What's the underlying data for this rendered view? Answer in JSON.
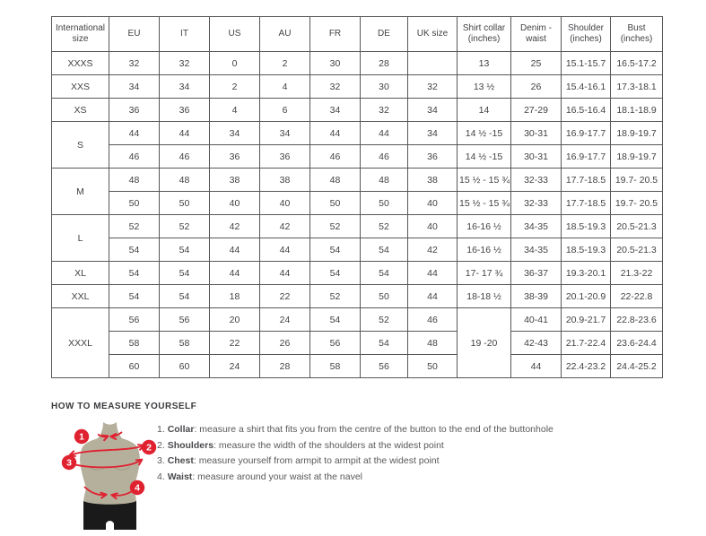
{
  "colors": {
    "accent_red": "#e02130",
    "torso": "#b5b09c",
    "torso_shade": "#a19c86",
    "shorts": "#1a1a1a",
    "table_border": "#57575a",
    "text": "#414245"
  },
  "size_chart": {
    "columns": [
      "International size",
      "EU",
      "IT",
      "US",
      "AU",
      "FR",
      "DE",
      "UK size",
      "Shirt collar (inches)",
      "Denim - waist",
      "Shoulder (inches)",
      "Bust (inches)"
    ],
    "rows": [
      {
        "cells": [
          {
            "text": "XXXS"
          },
          {
            "text": "32"
          },
          {
            "text": "32"
          },
          {
            "text": "0"
          },
          {
            "text": "2"
          },
          {
            "text": "30"
          },
          {
            "text": "28"
          },
          {
            "text": ""
          },
          {
            "text": "13"
          },
          {
            "text": "25"
          },
          {
            "text": "15.1-15.7"
          },
          {
            "text": "16.5-17.2"
          }
        ]
      },
      {
        "cells": [
          {
            "text": "XXS"
          },
          {
            "text": "34"
          },
          {
            "text": "34"
          },
          {
            "text": "2"
          },
          {
            "text": "4"
          },
          {
            "text": "32"
          },
          {
            "text": "30"
          },
          {
            "text": "32"
          },
          {
            "text": "13 ½"
          },
          {
            "text": "26"
          },
          {
            "text": "15.4-16.1"
          },
          {
            "text": "17.3-18.1"
          }
        ]
      },
      {
        "cells": [
          {
            "text": "XS"
          },
          {
            "text": "36"
          },
          {
            "text": "36"
          },
          {
            "text": "4"
          },
          {
            "text": "6"
          },
          {
            "text": "34"
          },
          {
            "text": "32"
          },
          {
            "text": "34"
          },
          {
            "text": "14"
          },
          {
            "text": "27-29"
          },
          {
            "text": "16.5-16.4"
          },
          {
            "text": "18.1-18.9"
          }
        ]
      },
      {
        "cells": [
          {
            "text": "S",
            "rowspan": 2
          },
          {
            "text": "44"
          },
          {
            "text": "44"
          },
          {
            "text": "34"
          },
          {
            "text": "34"
          },
          {
            "text": "44"
          },
          {
            "text": "44"
          },
          {
            "text": "34"
          },
          {
            "text": "14 ½ -15"
          },
          {
            "text": "30-31"
          },
          {
            "text": "16.9-17.7"
          },
          {
            "text": "18.9-19.7"
          }
        ]
      },
      {
        "cells": [
          {
            "text": "46"
          },
          {
            "text": "46"
          },
          {
            "text": "36"
          },
          {
            "text": "36"
          },
          {
            "text": "46"
          },
          {
            "text": "46"
          },
          {
            "text": "36"
          },
          {
            "text": "14 ½ -15"
          },
          {
            "text": "30-31"
          },
          {
            "text": "16.9-17.7"
          },
          {
            "text": "18.9-19.7"
          }
        ]
      },
      {
        "cells": [
          {
            "text": "M",
            "rowspan": 2
          },
          {
            "text": "48"
          },
          {
            "text": "48"
          },
          {
            "text": "38"
          },
          {
            "text": "38"
          },
          {
            "text": "48"
          },
          {
            "text": "48"
          },
          {
            "text": "38"
          },
          {
            "text": "15 ½ - 15 ¾"
          },
          {
            "text": "32-33"
          },
          {
            "text": "17.7-18.5"
          },
          {
            "text": "19.7- 20.5"
          }
        ]
      },
      {
        "cells": [
          {
            "text": "50"
          },
          {
            "text": "50"
          },
          {
            "text": "40"
          },
          {
            "text": "40"
          },
          {
            "text": "50"
          },
          {
            "text": "50"
          },
          {
            "text": "40"
          },
          {
            "text": "15 ½ - 15 ¾"
          },
          {
            "text": "32-33"
          },
          {
            "text": "17.7-18.5"
          },
          {
            "text": "19.7- 20.5"
          }
        ]
      },
      {
        "cells": [
          {
            "text": "L",
            "rowspan": 2
          },
          {
            "text": "52"
          },
          {
            "text": "52"
          },
          {
            "text": "42"
          },
          {
            "text": "42"
          },
          {
            "text": "52"
          },
          {
            "text": "52"
          },
          {
            "text": "40"
          },
          {
            "text": "16-16 ½"
          },
          {
            "text": "34-35"
          },
          {
            "text": "18.5-19.3"
          },
          {
            "text": "20.5-21.3"
          }
        ]
      },
      {
        "cells": [
          {
            "text": "54"
          },
          {
            "text": "54"
          },
          {
            "text": "44"
          },
          {
            "text": "44"
          },
          {
            "text": "54"
          },
          {
            "text": "54"
          },
          {
            "text": "42"
          },
          {
            "text": "16-16 ½"
          },
          {
            "text": "34-35"
          },
          {
            "text": "18.5-19.3"
          },
          {
            "text": "20.5-21.3"
          }
        ]
      },
      {
        "cells": [
          {
            "text": "XL"
          },
          {
            "text": "54"
          },
          {
            "text": "54"
          },
          {
            "text": "44"
          },
          {
            "text": "44"
          },
          {
            "text": "54"
          },
          {
            "text": "54"
          },
          {
            "text": "44"
          },
          {
            "text": "17- 17 ¾"
          },
          {
            "text": "36-37"
          },
          {
            "text": "19.3-20.1"
          },
          {
            "text": "21.3-22"
          }
        ]
      },
      {
        "cells": [
          {
            "text": "XXL"
          },
          {
            "text": "54"
          },
          {
            "text": "54"
          },
          {
            "text": "18"
          },
          {
            "text": "22"
          },
          {
            "text": "52"
          },
          {
            "text": "50"
          },
          {
            "text": "44"
          },
          {
            "text": "18-18 ½"
          },
          {
            "text": "38-39"
          },
          {
            "text": "20.1-20.9"
          },
          {
            "text": "22-22.8"
          }
        ]
      },
      {
        "cells": [
          {
            "text": "XXXL",
            "rowspan": 3
          },
          {
            "text": "56"
          },
          {
            "text": "56"
          },
          {
            "text": "20"
          },
          {
            "text": "24"
          },
          {
            "text": "54"
          },
          {
            "text": "52"
          },
          {
            "text": "46"
          },
          {
            "text": "19 -20",
            "rowspan": 3
          },
          {
            "text": "40-41"
          },
          {
            "text": "20.9-21.7"
          },
          {
            "text": "22.8-23.6"
          }
        ]
      },
      {
        "cells": [
          {
            "text": "58"
          },
          {
            "text": "58"
          },
          {
            "text": "22"
          },
          {
            "text": "26"
          },
          {
            "text": "56"
          },
          {
            "text": "54"
          },
          {
            "text": "48"
          },
          {
            "text": "42-43"
          },
          {
            "text": "21.7-22.4"
          },
          {
            "text": "23.6-24.4"
          }
        ]
      },
      {
        "cells": [
          {
            "text": "60"
          },
          {
            "text": "60"
          },
          {
            "text": "24"
          },
          {
            "text": "28"
          },
          {
            "text": "58"
          },
          {
            "text": "56"
          },
          {
            "text": "50"
          },
          {
            "text": "44"
          },
          {
            "text": "22.4-23.2"
          },
          {
            "text": "24.4-25.2"
          }
        ]
      }
    ]
  },
  "measure": {
    "heading": "HOW TO MEASURE YOURSELF",
    "items": [
      {
        "badge": "1",
        "num": "1.",
        "label": "Collar",
        "rest": ": measure a shirt that fits you from the centre of the button to the end of the buttonhole"
      },
      {
        "badge": "2",
        "num": "2.",
        "label": "Shoulders",
        "rest": ": measure the width of the shoulders at the widest point"
      },
      {
        "badge": "3",
        "num": "3.",
        "label": "Chest",
        "rest": ": measure yourself from armpit to armpit at the widest point"
      },
      {
        "badge": "4",
        "num": "4.",
        "label": "Waist",
        "rest": ": measure around your waist at the navel"
      }
    ]
  }
}
